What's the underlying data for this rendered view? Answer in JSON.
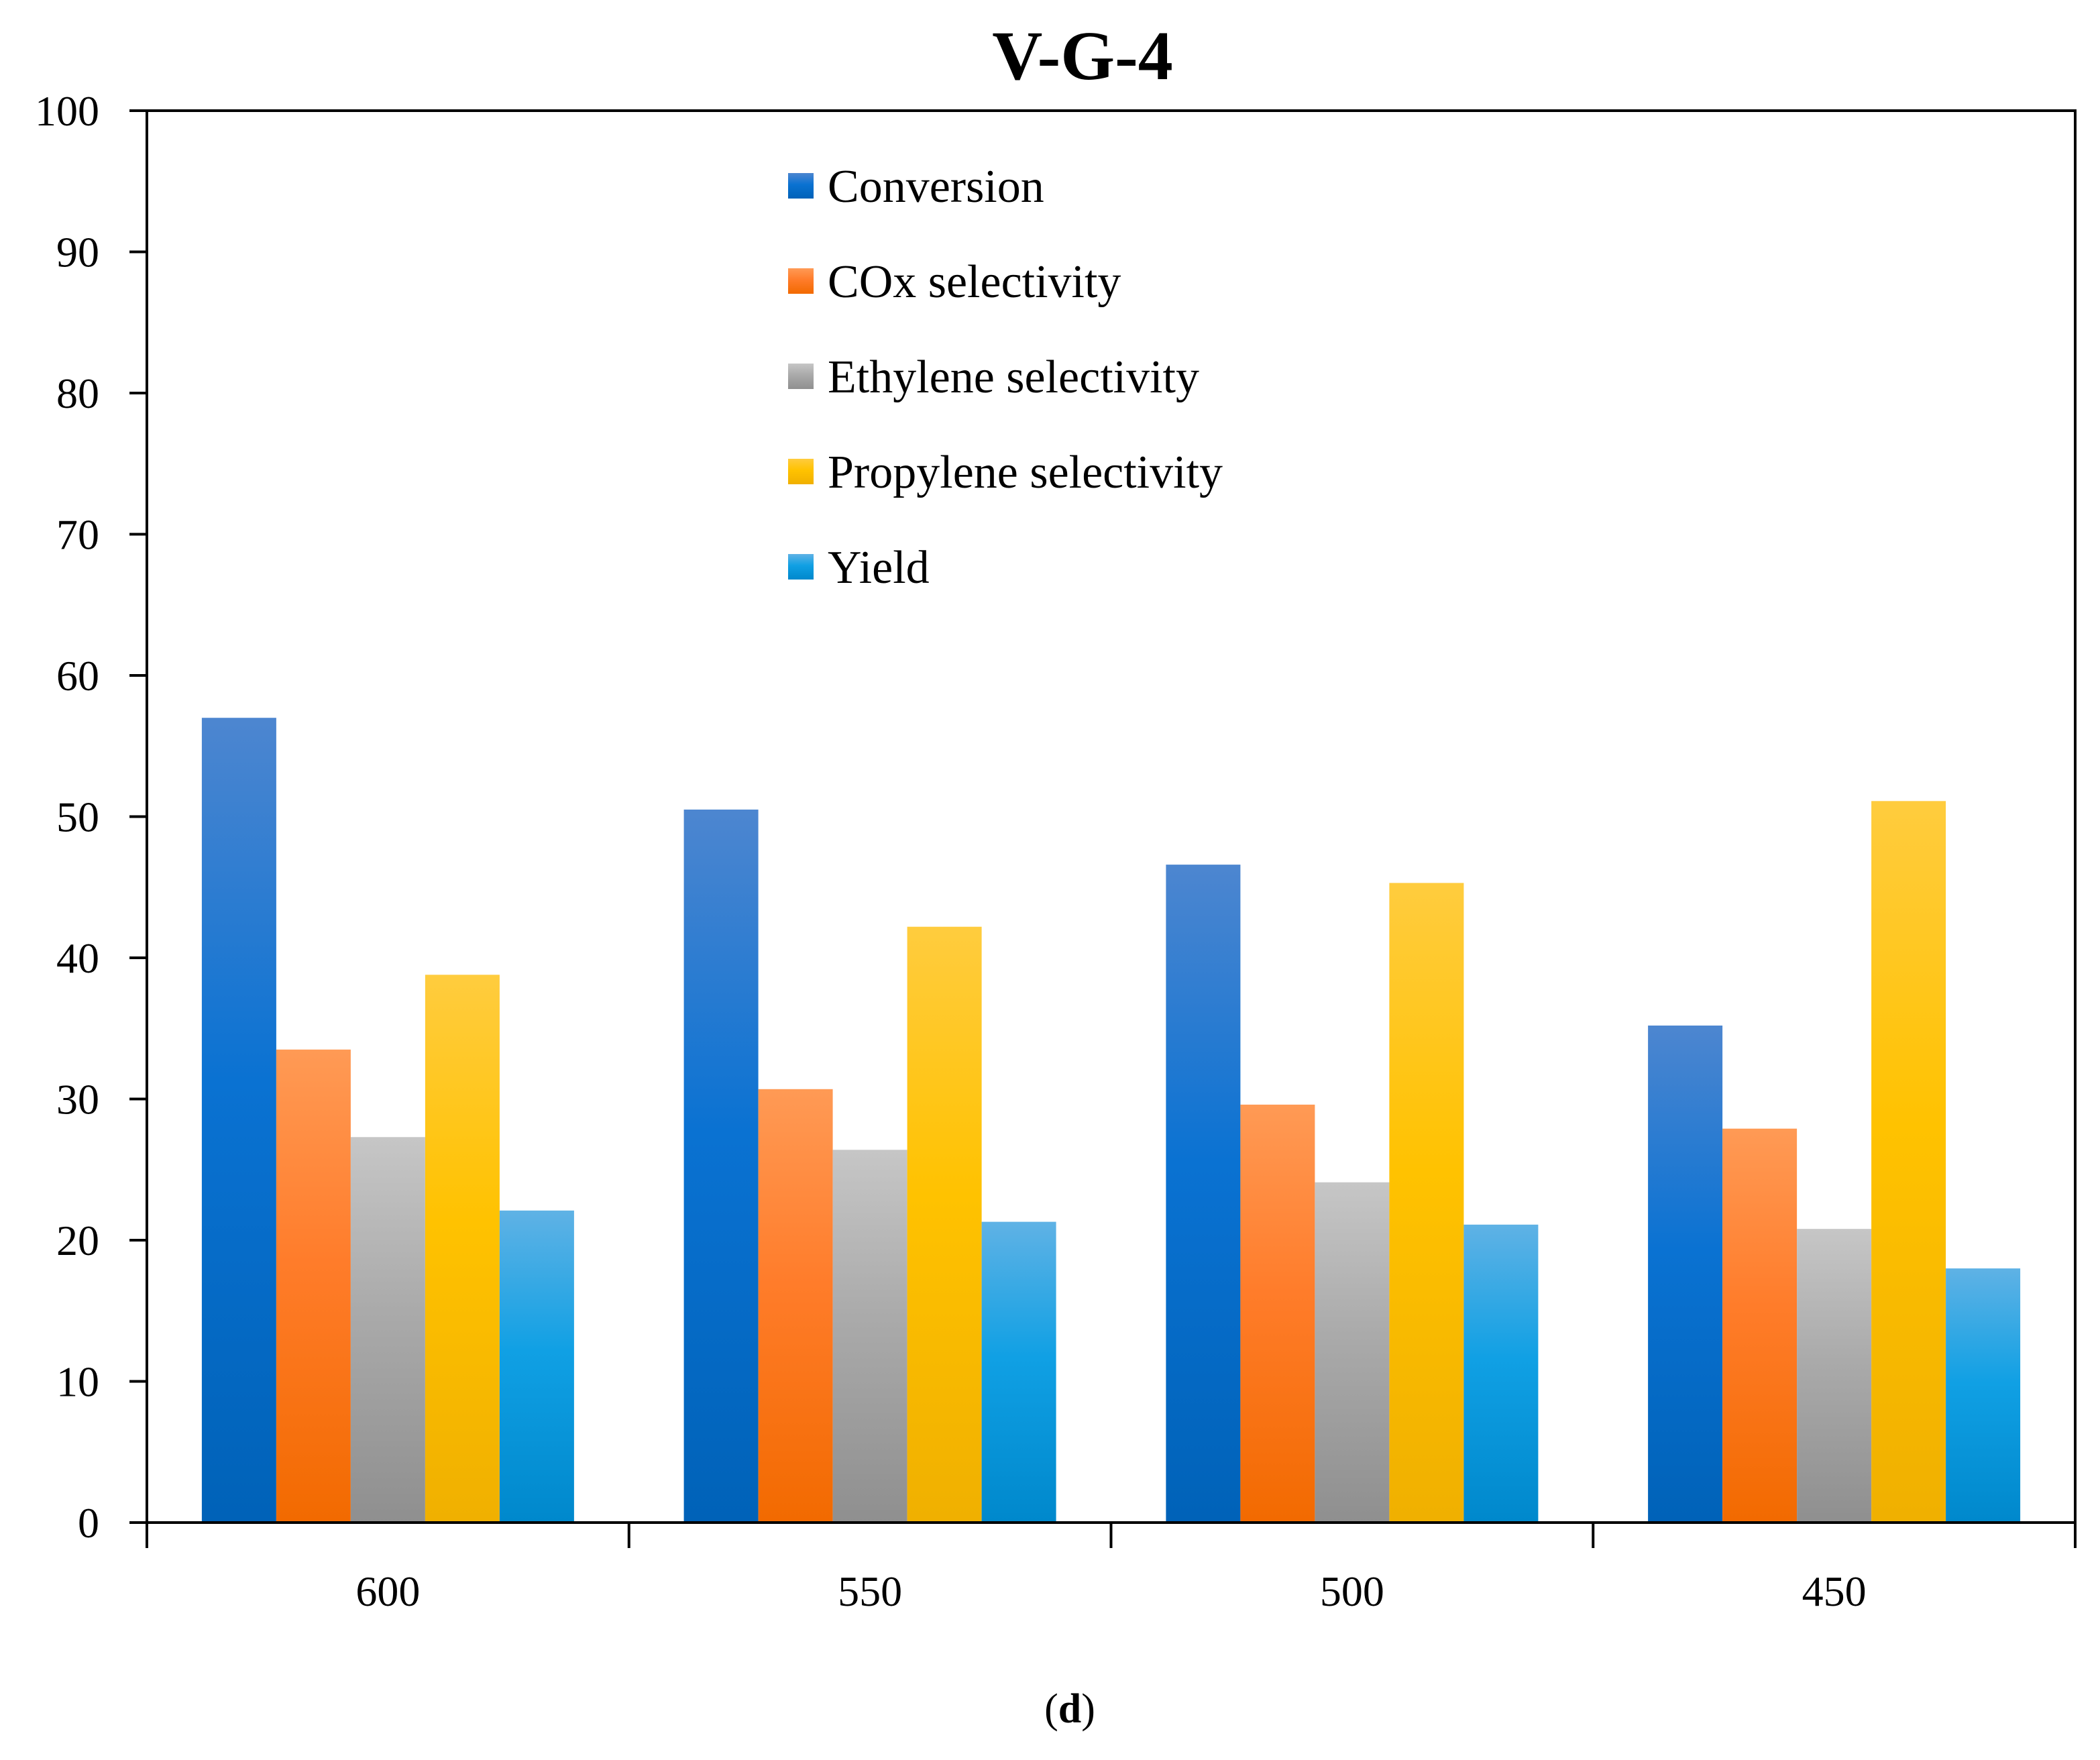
{
  "chart_data": {
    "type": "bar",
    "title": "V-G-4",
    "caption": {
      "open": "(",
      "letter": "d",
      "close": ")"
    },
    "xlabel": "",
    "ylabel": "",
    "categories": [
      "600",
      "550",
      "500",
      "450"
    ],
    "ylim": [
      0,
      100
    ],
    "yticks": [
      0,
      10,
      20,
      30,
      40,
      50,
      60,
      70,
      80,
      90,
      100
    ],
    "grid": false,
    "legend_position": "top-center",
    "series": [
      {
        "name": "Conversion",
        "values": [
          57.0,
          50.5,
          46.6,
          35.2
        ],
        "color_top": "#4d86d0",
        "color_mid": "#0a72d2",
        "color_bottom": "#0062b8"
      },
      {
        "name": "COx selectivity",
        "values": [
          33.5,
          30.7,
          29.6,
          27.9
        ],
        "color_top": "#ff9a55",
        "color_mid": "#ff7c2a",
        "color_bottom": "#f26a00"
      },
      {
        "name": "Ethylene selectivity",
        "values": [
          27.3,
          26.4,
          24.1,
          20.8
        ],
        "color_top": "#c6c6c6",
        "color_mid": "#aaaaaa",
        "color_bottom": "#8f8f8f"
      },
      {
        "name": "Propylene selectivity",
        "values": [
          38.8,
          42.2,
          45.3,
          51.1
        ],
        "color_top": "#ffcc3e",
        "color_mid": "#ffc200",
        "color_bottom": "#f0b000"
      },
      {
        "name": "Yield",
        "values": [
          22.1,
          21.3,
          21.1,
          18.0
        ],
        "color_top": "#5fb2e5",
        "color_mid": "#10a0e4",
        "color_bottom": "#0088cc"
      }
    ]
  }
}
